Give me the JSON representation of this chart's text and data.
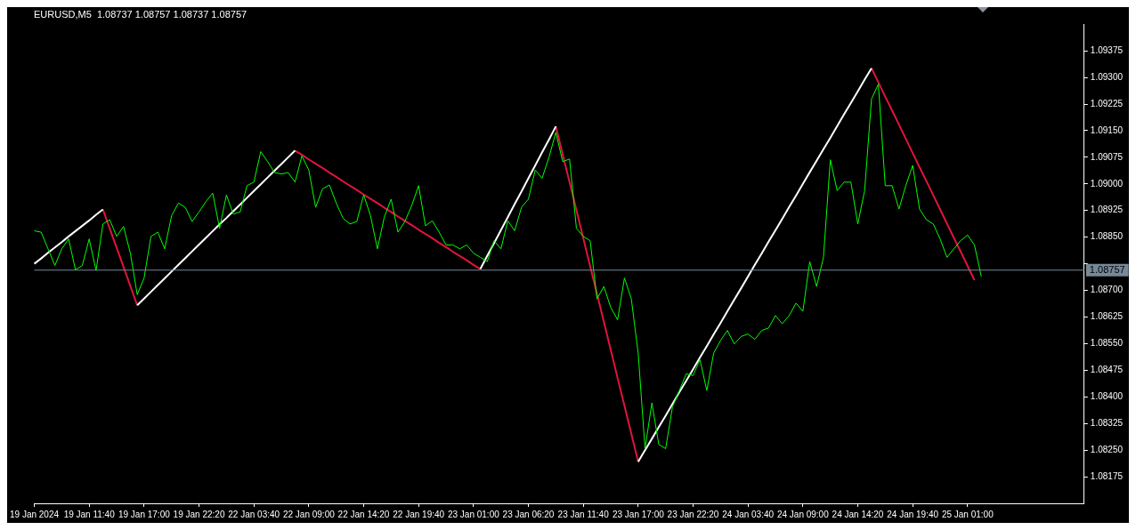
{
  "chart_data": {
    "type": "line",
    "title": "EURUSD,M5  1.08737 1.08757 1.08737 1.08757",
    "grid": false,
    "legend": false,
    "marker": "none",
    "categories": [
      "19 Jan 2024",
      null,
      null,
      null,
      null,
      null,
      null,
      null,
      "19 Jan 11:40",
      null,
      null,
      null,
      null,
      null,
      null,
      null,
      "19 Jan 17:00",
      null,
      null,
      null,
      null,
      null,
      null,
      null,
      "19 Jan 22:20",
      null,
      null,
      null,
      null,
      null,
      null,
      null,
      "22 Jan 03:40",
      null,
      null,
      null,
      null,
      null,
      null,
      null,
      "22 Jan 09:00",
      null,
      null,
      null,
      null,
      null,
      null,
      null,
      "22 Jan 14:20",
      null,
      null,
      null,
      null,
      null,
      null,
      null,
      "22 Jan 19:40",
      null,
      null,
      null,
      null,
      null,
      null,
      null,
      "23 Jan 01:00",
      null,
      null,
      null,
      null,
      null,
      null,
      null,
      "23 Jan 06:20",
      null,
      null,
      null,
      null,
      null,
      null,
      null,
      "23 Jan 11:40",
      null,
      null,
      null,
      null,
      null,
      null,
      null,
      "23 Jan 17:00",
      null,
      null,
      null,
      null,
      null,
      null,
      null,
      "23 Jan 22:20",
      null,
      null,
      null,
      null,
      null,
      null,
      null,
      "24 Jan 03:40",
      null,
      null,
      null,
      null,
      null,
      null,
      null,
      "24 Jan 09:00",
      null,
      null,
      null,
      null,
      null,
      null,
      null,
      "24 Jan 14:20",
      null,
      null,
      null,
      null,
      null,
      null,
      null,
      "24 Jan 19:40",
      null,
      null,
      null,
      null,
      null,
      null,
      null,
      "25 Jan 01:00",
      null,
      null,
      null,
      null,
      null,
      null,
      null,
      null,
      null,
      null,
      null,
      null,
      null,
      null,
      null,
      null,
      null
    ],
    "ylim": [
      1.081,
      1.0945
    ],
    "yticks": [
      {
        "value": 1.08175,
        "label": "1.08175"
      },
      {
        "value": 1.0825,
        "label": "1.08250"
      },
      {
        "value": 1.08325,
        "label": "1.08325"
      },
      {
        "value": 1.084,
        "label": "1.08400"
      },
      {
        "value": 1.08475,
        "label": "1.08475"
      },
      {
        "value": 1.0855,
        "label": "1.08550"
      },
      {
        "value": 1.08625,
        "label": "1.08625"
      },
      {
        "value": 1.087,
        "label": "1.08700"
      },
      {
        "value": 1.08775,
        "label": null
      },
      {
        "value": 1.0885,
        "label": "1.08850"
      },
      {
        "value": 1.08925,
        "label": "1.08925"
      },
      {
        "value": 1.09,
        "label": "1.09000"
      },
      {
        "value": 1.09075,
        "label": "1.09075"
      },
      {
        "value": 1.0915,
        "label": "1.09150"
      },
      {
        "value": 1.09225,
        "label": "1.09225"
      },
      {
        "value": 1.093,
        "label": "1.09300"
      },
      {
        "value": 1.09375,
        "label": "1.09375"
      }
    ],
    "ref_lines": [
      {
        "axis": "y",
        "value": 1.08757,
        "label": "1.08757",
        "color": "#778899"
      }
    ],
    "series": [
      {
        "color": "#00ff00",
        "values": [
          1.08868,
          1.08864,
          1.08817,
          1.0877,
          1.08817,
          1.08845,
          1.08758,
          1.0877,
          1.08845,
          1.08756,
          1.08887,
          1.08899,
          1.08852,
          1.0888,
          1.08805,
          1.08688,
          1.08735,
          1.08852,
          1.08864,
          1.08817,
          1.0891,
          1.08946,
          1.08934,
          1.08894,
          1.08921,
          1.0895,
          1.08974,
          1.08875,
          1.08969,
          1.08915,
          1.08921,
          1.08995,
          1.09005,
          1.09091,
          1.09063,
          1.09032,
          1.09028,
          1.09032,
          1.09005,
          1.09079,
          1.09039,
          1.08934,
          1.08986,
          1.08997,
          1.08946,
          1.08903,
          1.08887,
          1.08894,
          1.08969,
          1.0891,
          1.08817,
          1.08906,
          1.08957,
          1.08864,
          1.08894,
          1.08939,
          1.08995,
          1.08882,
          1.08896,
          1.08864,
          1.08828,
          1.08828,
          1.08817,
          1.08828,
          1.08805,
          1.08793,
          1.08781,
          1.0884,
          1.08817,
          1.08896,
          1.08868,
          1.08934,
          1.08957,
          1.09039,
          1.09016,
          1.09075,
          1.09145,
          1.09063,
          1.0907,
          1.08875,
          1.08852,
          1.0884,
          1.08676,
          1.08711,
          1.08652,
          1.08617,
          1.08735,
          1.08676,
          1.08523,
          1.08254,
          1.08383,
          1.08266,
          1.08254,
          1.08372,
          1.08418,
          1.08465,
          1.0846,
          1.08505,
          1.08418,
          1.08523,
          1.08559,
          1.08587,
          1.08549,
          1.0857,
          1.08577,
          1.08562,
          1.08587,
          1.08594,
          1.08629,
          1.08606,
          1.08629,
          1.08664,
          1.08641,
          1.08781,
          1.08711,
          1.08793,
          1.09068,
          1.08981,
          1.09005,
          1.09005,
          1.08887,
          1.08981,
          1.09239,
          1.09281,
          1.08995,
          1.08995,
          1.08929,
          1.08995,
          1.09052,
          1.08929,
          1.08899,
          1.08887,
          1.08845,
          1.08793,
          1.08817,
          1.0884,
          1.08856,
          1.08828,
          1.08739,
          null,
          null,
          null,
          null,
          null,
          null,
          null,
          null,
          null,
          null,
          null,
          null,
          null,
          null,
          null
        ]
      },
      {
        "color": "#ffffff",
        "values": [
          1.08775,
          1.0879,
          1.08806,
          1.08821,
          1.08836,
          1.08852,
          1.08867,
          1.08882,
          1.08897,
          1.08913,
          1.08928,
          null,
          null,
          null,
          null,
          1.08658,
          1.08677,
          1.08696,
          1.08715,
          1.08734,
          1.08753,
          1.08772,
          1.08791,
          1.0881,
          1.08829,
          1.08848,
          1.08867,
          1.08886,
          1.08904,
          1.08923,
          1.08942,
          1.08961,
          1.0898,
          1.08999,
          1.09018,
          1.09037,
          1.09056,
          1.09075,
          1.09094,
          null,
          null,
          null,
          null,
          null,
          null,
          null,
          null,
          null,
          null,
          null,
          null,
          null,
          null,
          null,
          null,
          null,
          null,
          null,
          null,
          null,
          null,
          null,
          null,
          null,
          null,
          1.0876,
          1.08797,
          1.08833,
          1.0887,
          1.08906,
          1.08943,
          1.08979,
          1.09016,
          1.09052,
          1.09089,
          1.09125,
          1.09162,
          null,
          null,
          null,
          null,
          null,
          null,
          null,
          null,
          null,
          null,
          null,
          1.08217,
          1.0825,
          1.08282,
          1.08315,
          1.08347,
          1.0838,
          1.08413,
          1.08445,
          1.08478,
          1.08511,
          1.08543,
          1.08576,
          1.08608,
          1.08641,
          1.08674,
          1.08706,
          1.08739,
          1.08772,
          1.08804,
          1.08837,
          1.08869,
          1.08902,
          1.08935,
          1.08967,
          1.09,
          1.09033,
          1.09065,
          1.09098,
          1.0913,
          1.09163,
          1.09196,
          1.09228,
          1.09261,
          1.09294,
          1.09326,
          null,
          null,
          null,
          null,
          null,
          null,
          null,
          null,
          null,
          null,
          null,
          null,
          null,
          null,
          null,
          null,
          null,
          null,
          null,
          null,
          null,
          null,
          null,
          null,
          null,
          null,
          null,
          null,
          null,
          null,
          null
        ]
      },
      {
        "color": "#e0143c",
        "values": [
          null,
          null,
          null,
          null,
          null,
          null,
          null,
          null,
          null,
          null,
          1.08928,
          1.08874,
          1.0882,
          1.08766,
          1.08712,
          1.08658,
          null,
          null,
          null,
          null,
          null,
          null,
          null,
          null,
          null,
          null,
          null,
          null,
          null,
          null,
          null,
          null,
          null,
          null,
          null,
          null,
          null,
          null,
          1.09094,
          1.09082,
          1.09069,
          1.09057,
          1.09045,
          1.09032,
          1.0902,
          1.09007,
          1.08995,
          1.08983,
          1.0897,
          1.08958,
          1.08946,
          1.08933,
          1.08921,
          1.08908,
          1.08896,
          1.08884,
          1.08871,
          1.08859,
          1.08847,
          1.08834,
          1.08822,
          1.08809,
          1.08797,
          1.08785,
          1.08772,
          1.0876,
          null,
          null,
          null,
          null,
          null,
          null,
          null,
          null,
          null,
          null,
          1.09162,
          1.09083,
          1.09005,
          1.08926,
          1.08847,
          1.08768,
          1.0869,
          1.08611,
          1.08532,
          1.08453,
          1.08375,
          1.08296,
          1.08217,
          null,
          null,
          null,
          null,
          null,
          null,
          null,
          null,
          null,
          null,
          null,
          null,
          null,
          null,
          null,
          null,
          null,
          null,
          null,
          null,
          null,
          null,
          null,
          null,
          null,
          null,
          null,
          null,
          null,
          null,
          null,
          null,
          null,
          1.09326,
          1.09286,
          1.09246,
          1.09207,
          1.09167,
          1.09127,
          1.09087,
          1.09047,
          1.09008,
          1.08968,
          1.08928,
          1.08888,
          1.08848,
          1.08809,
          1.08769,
          1.08729,
          null,
          null,
          null,
          null,
          null,
          null,
          null,
          null,
          null,
          null,
          null,
          null,
          null,
          null,
          null,
          null
        ]
      }
    ]
  }
}
